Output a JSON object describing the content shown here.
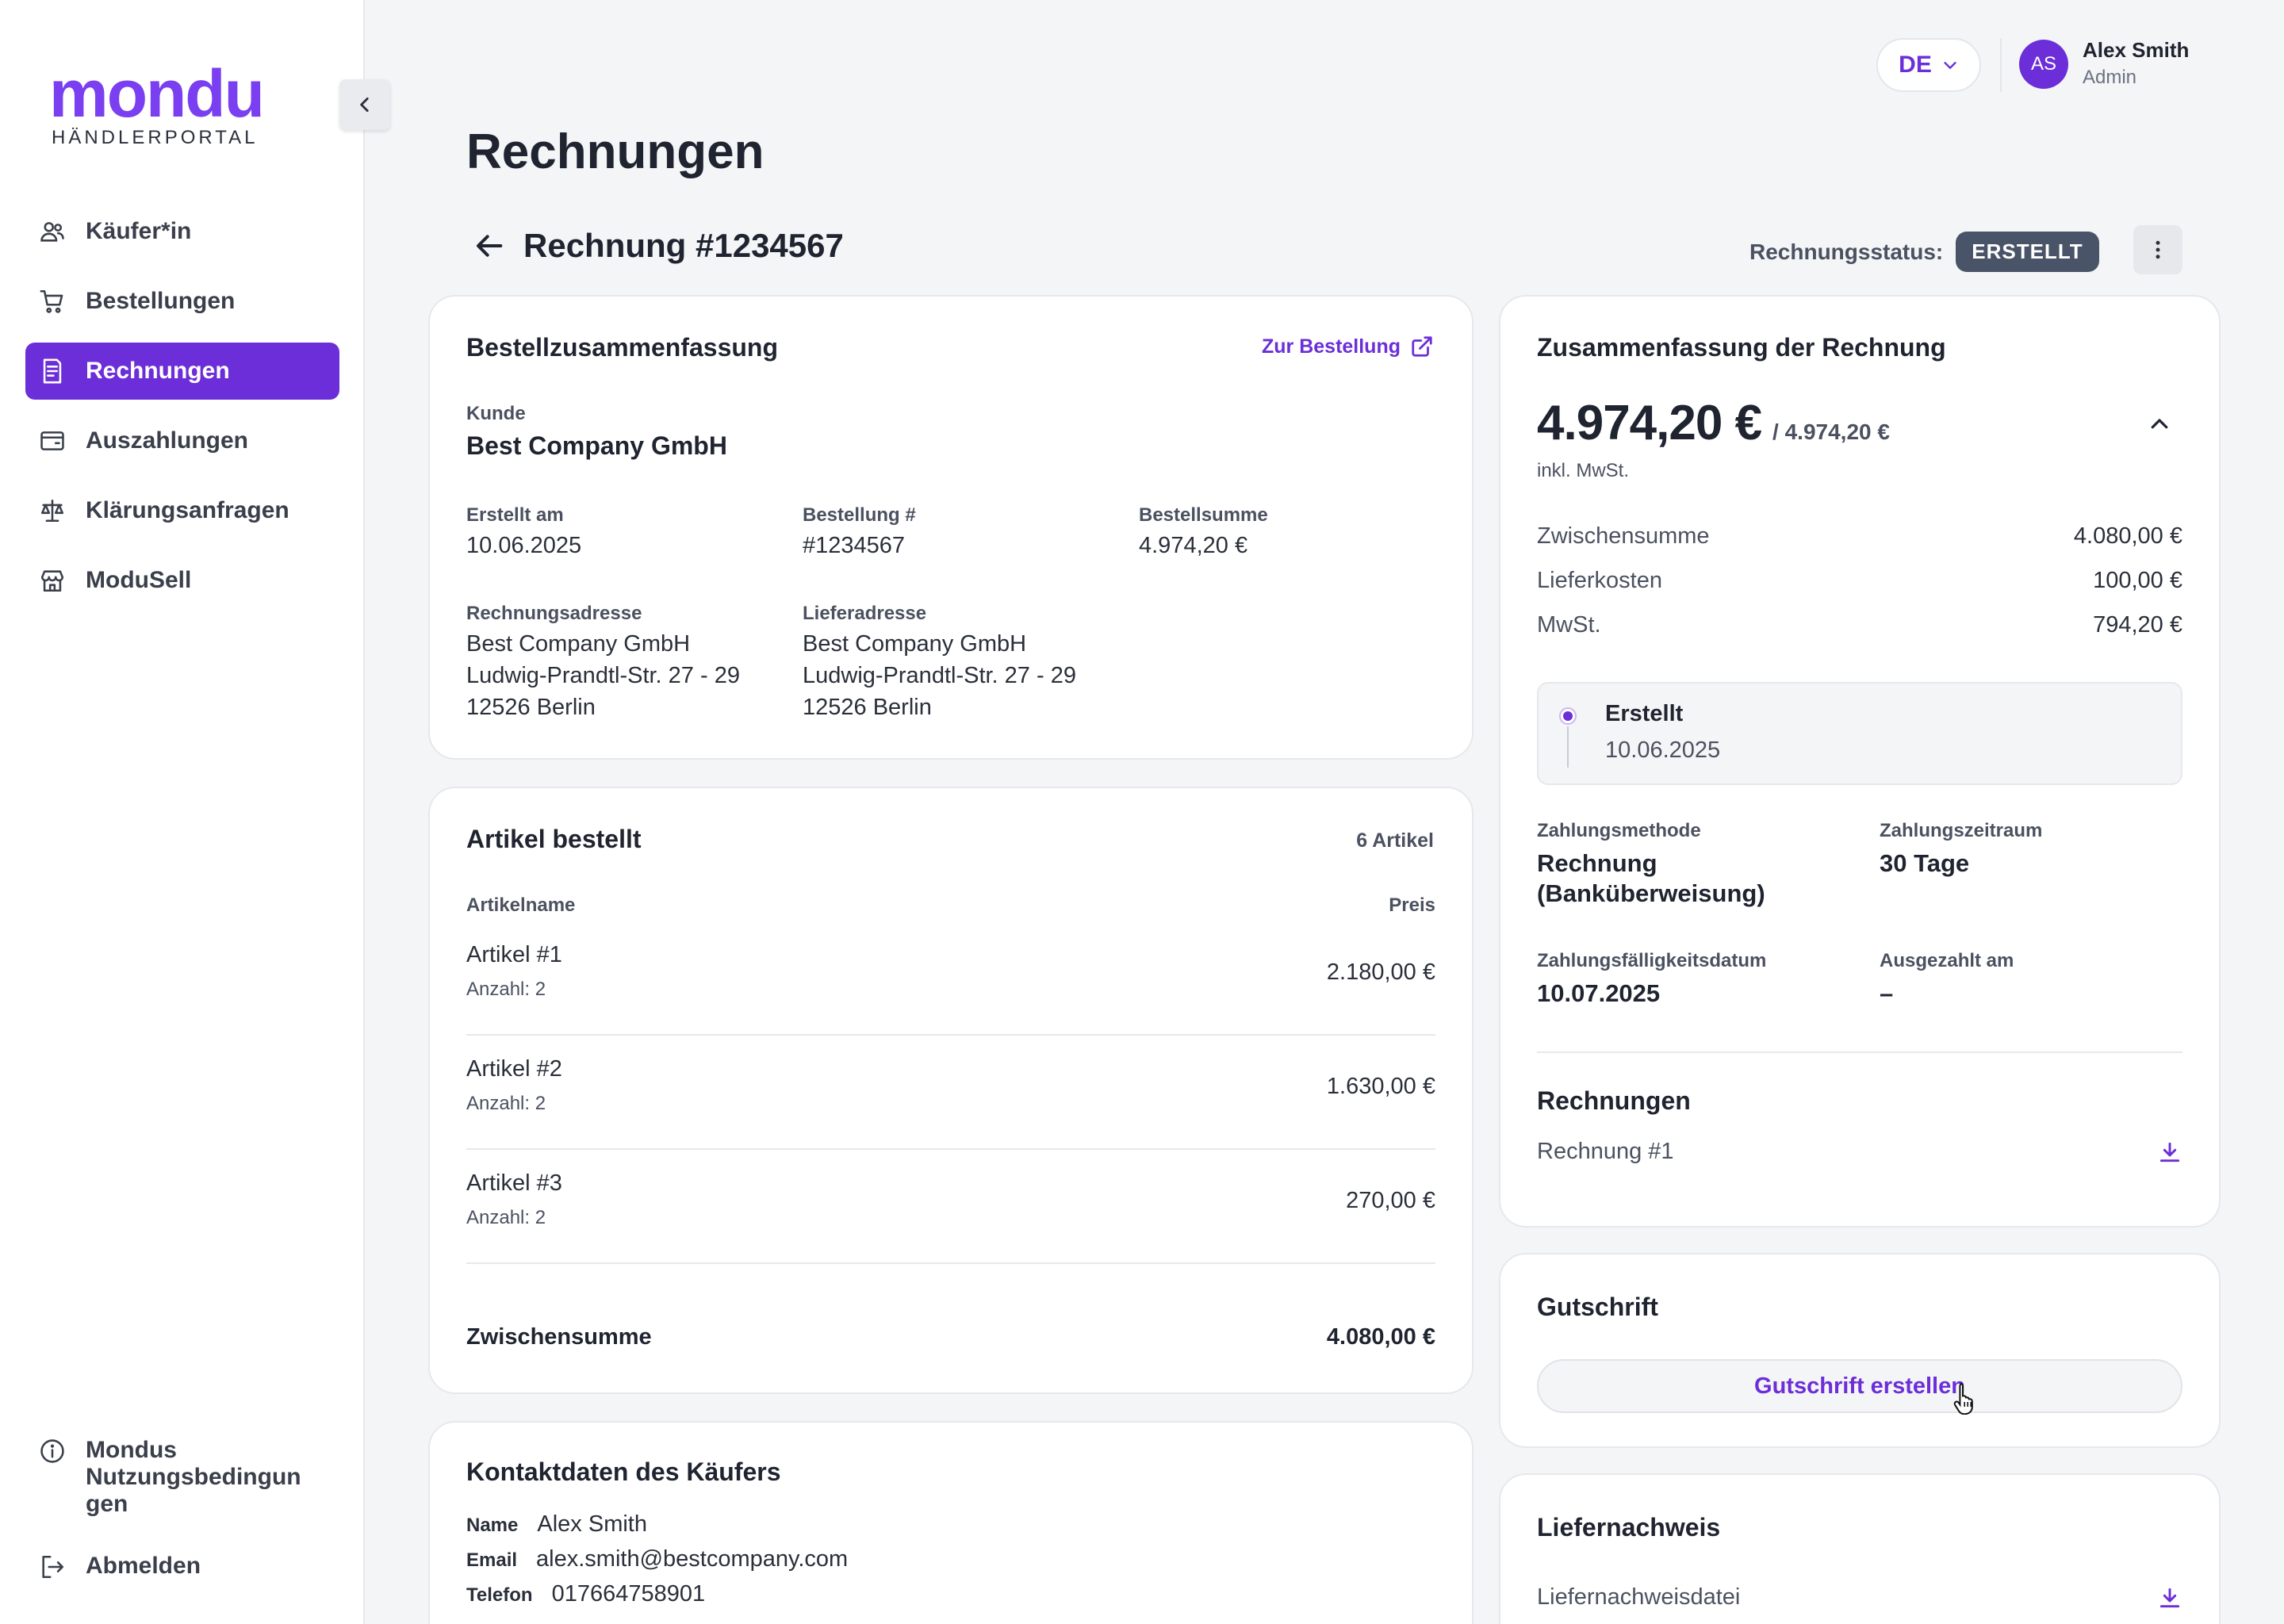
{
  "brand": {
    "name": "mondu",
    "subtitle": "HÄNDLERPORTAL",
    "accent": "#6b2ed8"
  },
  "sidebar": {
    "items": [
      {
        "label": "Käufer*in",
        "icon": "users-icon",
        "active": false
      },
      {
        "label": "Bestellungen",
        "icon": "cart-icon",
        "active": false
      },
      {
        "label": "Rechnungen",
        "icon": "invoice-icon",
        "active": true
      },
      {
        "label": "Auszahlungen",
        "icon": "wallet-icon",
        "active": false
      },
      {
        "label": "Klärungsanfragen",
        "icon": "scale-icon",
        "active": false
      },
      {
        "label": "ModuSell",
        "icon": "store-icon",
        "active": false
      }
    ],
    "bottom": {
      "terms_line1": "Mondus",
      "terms_line2": "Nutzungsbedingun",
      "terms_line3": "gen",
      "logout": "Abmelden"
    }
  },
  "topbar": {
    "language": "DE",
    "user": {
      "initials": "AS",
      "name": "Alex Smith",
      "role": "Admin"
    }
  },
  "page": {
    "title": "Rechnungen",
    "invoice_title": "Rechnung #1234567",
    "status_label": "Rechnungsstatus:",
    "status": "ERSTELLT"
  },
  "order_summary": {
    "title": "Bestellzusammenfassung",
    "link": "Zur Bestellung",
    "customer_label": "Kunde",
    "customer": "Best Company GmbH",
    "created_label": "Erstellt am",
    "created": "10.06.2025",
    "order_no_label": "Bestellung #",
    "order_no": "#1234567",
    "order_total_label": "Bestellsumme",
    "order_total": "4.974,20 €",
    "billing_label": "Rechnungsadresse",
    "billing": [
      "Best Company GmbH",
      "Ludwig-Prandtl-Str. 27 - 29",
      "12526 Berlin"
    ],
    "shipping_label": "Lieferadresse",
    "shipping": [
      "Best Company GmbH",
      "Ludwig-Prandtl-Str. 27 - 29",
      "12526 Berlin"
    ]
  },
  "articles": {
    "title": "Artikel bestellt",
    "count": "6 Artikel",
    "col_name": "Artikelname",
    "col_price": "Preis",
    "rows": [
      {
        "name": "Artikel #1",
        "qty": "Anzahl: 2",
        "price": "2.180,00 €"
      },
      {
        "name": "Artikel #2",
        "qty": "Anzahl: 2",
        "price": "1.630,00 €"
      },
      {
        "name": "Artikel #3",
        "qty": "Anzahl: 2",
        "price": "270,00 €"
      }
    ],
    "subtotal_label": "Zwischensumme",
    "subtotal": "4.080,00 €"
  },
  "contact": {
    "title": "Kontaktdaten des Käufers",
    "name_label": "Name",
    "name": "Alex Smith",
    "email_label": "Email",
    "email": "alex.smith@bestcompany.com",
    "phone_label": "Telefon",
    "phone": "017664758901"
  },
  "invoice_summary": {
    "title": "Zusammenfassung der Rechnung",
    "amount": "4.974,20 €",
    "amount_of": "/ 4.974,20 €",
    "incl_vat": "inkl. MwSt.",
    "rows": [
      {
        "label": "Zwischensumme",
        "value": "4.080,00 €"
      },
      {
        "label": "Lieferkosten",
        "value": "100,00 €"
      },
      {
        "label": "MwSt.",
        "value": "794,20 €"
      }
    ],
    "timeline": {
      "title": "Erstellt",
      "date": "10.06.2025"
    },
    "payment_method_label": "Zahlungsmethode",
    "payment_method_line1": "Rechnung",
    "payment_method_line2": "(Banküberweisung)",
    "payment_term_label": "Zahlungszeitraum",
    "payment_term": "30 Tage",
    "due_date_label": "Zahlungsfälligkeitsdatum",
    "due_date": "10.07.2025",
    "paid_out_label": "Ausgezahlt am",
    "paid_out": "–",
    "invoices_title": "Rechnungen",
    "invoice_file": "Rechnung #1"
  },
  "credit_note": {
    "title": "Gutschrift",
    "button": "Gutschrift erstellen"
  },
  "delivery": {
    "title": "Liefernachweis",
    "file": "Liefernachweisdatei"
  }
}
